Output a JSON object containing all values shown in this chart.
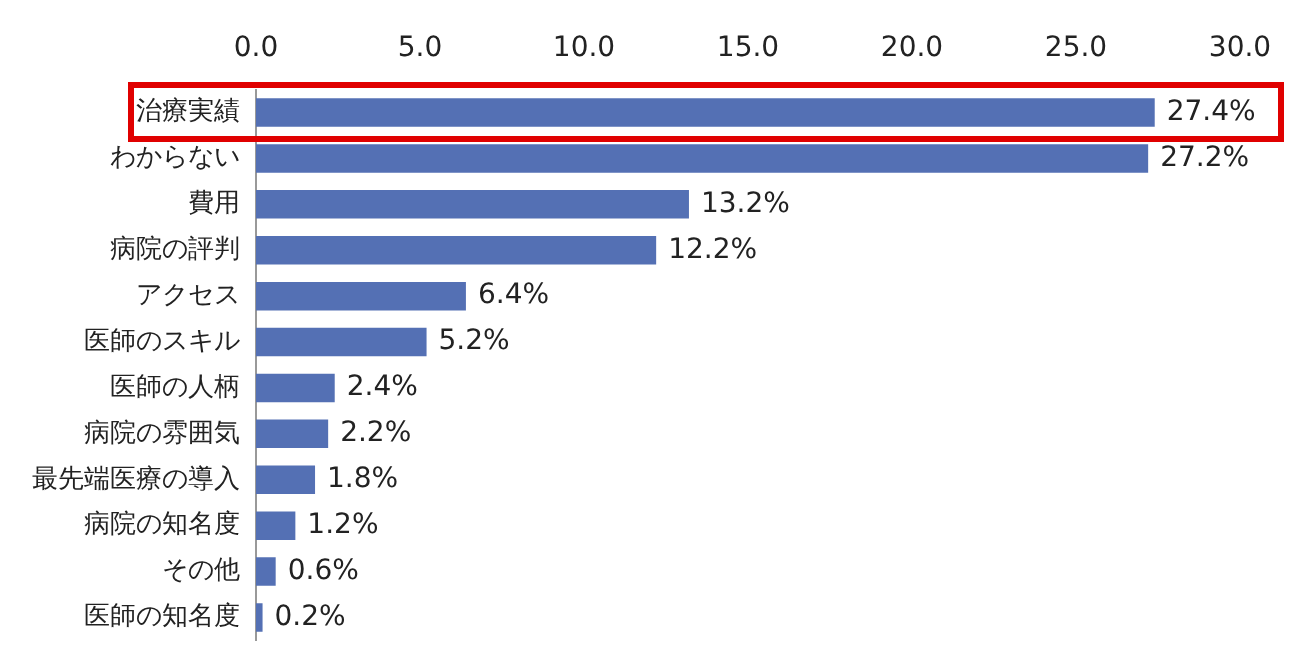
{
  "chart_data": {
    "type": "bar",
    "orientation": "horizontal",
    "categories": [
      "治療実績",
      "わからない",
      "費用",
      "病院の評判",
      "アクセス",
      "医師のスキル",
      "医師の人柄",
      "病院の雰囲気",
      "最先端医療の導入",
      "病院の知名度",
      "その他",
      "医師の知名度"
    ],
    "values": [
      27.4,
      27.2,
      13.2,
      12.2,
      6.4,
      5.2,
      2.4,
      2.2,
      1.8,
      1.2,
      0.6,
      0.2
    ],
    "value_labels": [
      "27.4%",
      "27.2%",
      "13.2%",
      "12.2%",
      "6.4%",
      "5.2%",
      "2.4%",
      "2.2%",
      "1.8%",
      "1.2%",
      "0.6%",
      "0.2%"
    ],
    "color": "#5470b4",
    "xlim": [
      0,
      30
    ],
    "xticks": [
      {
        "value": 0,
        "label": "0.0"
      },
      {
        "value": 5,
        "label": "5.0"
      },
      {
        "value": 10,
        "label": "10.0"
      },
      {
        "value": 15,
        "label": "15.0"
      },
      {
        "value": 20,
        "label": "20.0"
      },
      {
        "value": 25,
        "label": "25.0"
      },
      {
        "value": 30,
        "label": "30.0"
      }
    ],
    "grid": false,
    "legend": false
  }
}
